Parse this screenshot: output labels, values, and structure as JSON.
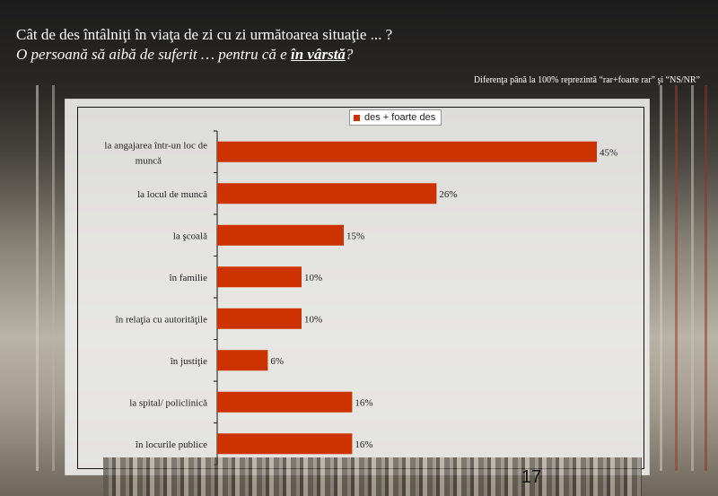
{
  "slide": {
    "title_line1": "Cât de des întâlniţi în viaţa de zi cu zi următoarea situaţie ... ?",
    "title_line2_prefix": "O persoană să aibă de suferit … pentru că e ",
    "title_line2_emphasis": "în vârstă",
    "title_line2_suffix": "?",
    "note": "Diferenţa până la 100% reprezintă  “rar+foarte rar” şi “NS/NR”",
    "page_number": "17"
  },
  "colors": {
    "bar": "#cc3300",
    "text": "#222222"
  },
  "chart_data": {
    "type": "bar",
    "orientation": "horizontal",
    "categories": [
      "la angajarea într-un loc de muncă",
      "la locul de muncă",
      "la şcoală",
      "în familie",
      "în relaţia cu autorităţile",
      "în justiţie",
      "la spital/ policlinică",
      "în locurile publice"
    ],
    "series": [
      {
        "name": "des + foarte des",
        "values": [
          45,
          26,
          15,
          10,
          10,
          6,
          16,
          16
        ],
        "labels": [
          "45%",
          "26%",
          "15%",
          "10%",
          "10%",
          "6%",
          "16%",
          "16%"
        ]
      }
    ],
    "xlim": [
      0,
      50
    ],
    "grid": false,
    "legend_position": "top-center"
  }
}
